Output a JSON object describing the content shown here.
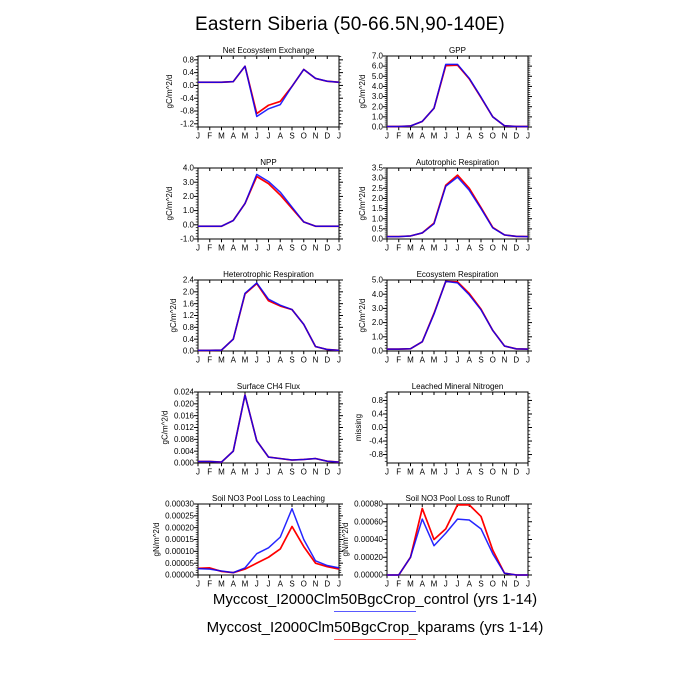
{
  "page_title": "Eastern Siberia (50-66.5N,90-140E)",
  "months": [
    "J",
    "F",
    "M",
    "A",
    "M",
    "J",
    "J",
    "A",
    "S",
    "O",
    "N",
    "D",
    "J"
  ],
  "colors": {
    "control": "#0000ff",
    "kparams": "#ff0000"
  },
  "legend": {
    "entries": [
      {
        "name": "control",
        "label": "Myccost_I2000Clm50BgcCrop_control (yrs 1-14)",
        "color": "#0000ff"
      },
      {
        "name": "kparams",
        "label": "Myccost_I2000Clm50BgcCrop_kparams (yrs 1-14)",
        "color": "#ff0000"
      }
    ]
  },
  "chart_data": [
    {
      "id": "net-ecosystem-exchange",
      "type": "line",
      "title": "Net Ecosystem Exchange",
      "ylabel": "gC/m^2/d",
      "ylim": [
        -1.3,
        0.92
      ],
      "yminor": 0.1,
      "ytick_vals": [
        -1.2,
        -0.8,
        -0.4,
        0.0,
        0.4,
        0.8
      ],
      "ytick_labels": [
        "-1.2",
        "-0.8",
        "-0.4",
        "0.0",
        "0.4",
        "0.8"
      ],
      "series": [
        {
          "name": "kparams",
          "color": "#ff0000",
          "values": [
            0.1,
            0.1,
            0.1,
            0.12,
            0.6,
            -0.88,
            -0.62,
            -0.5,
            -0.03,
            0.5,
            0.22,
            0.13,
            0.1
          ]
        },
        {
          "name": "control",
          "color": "#0000ff",
          "values": [
            0.1,
            0.1,
            0.1,
            0.12,
            0.6,
            -0.97,
            -0.73,
            -0.6,
            -0.03,
            0.5,
            0.22,
            0.13,
            0.1
          ]
        }
      ]
    },
    {
      "id": "gpp",
      "type": "line",
      "title": "GPP",
      "ylabel": "gC/m^2/d",
      "ylim": [
        0.0,
        7.0
      ],
      "yminor": 0.2,
      "ytick_vals": [
        0.0,
        1.0,
        2.0,
        3.0,
        4.0,
        5.0,
        6.0,
        7.0
      ],
      "ytick_labels": [
        "0.0",
        "1.0",
        "2.0",
        "3.0",
        "4.0",
        "5.0",
        "6.0",
        "7.0"
      ],
      "series": [
        {
          "name": "kparams",
          "color": "#ff0000",
          "values": [
            0.05,
            0.05,
            0.1,
            0.55,
            1.85,
            6.05,
            6.1,
            4.75,
            2.9,
            1.0,
            0.12,
            0.05,
            0.05
          ]
        },
        {
          "name": "control",
          "color": "#0000ff",
          "values": [
            0.05,
            0.05,
            0.1,
            0.55,
            1.85,
            6.18,
            6.18,
            4.8,
            2.95,
            1.0,
            0.12,
            0.05,
            0.05
          ]
        }
      ]
    },
    {
      "id": "npp",
      "type": "line",
      "title": "NPP",
      "ylabel": "gC/m^2/d",
      "ylim": [
        -1.0,
        4.0
      ],
      "yminor": 0.2,
      "ytick_vals": [
        -1.0,
        0.0,
        1.0,
        2.0,
        3.0,
        4.0
      ],
      "ytick_labels": [
        "-1.0",
        "0.0",
        "1.0",
        "2.0",
        "3.0",
        "4.0"
      ],
      "series": [
        {
          "name": "kparams",
          "color": "#ff0000",
          "values": [
            -0.1,
            -0.1,
            -0.1,
            0.3,
            1.5,
            3.4,
            2.9,
            2.1,
            1.15,
            0.2,
            -0.1,
            -0.1,
            -0.1
          ]
        },
        {
          "name": "control",
          "color": "#0000ff",
          "values": [
            -0.1,
            -0.1,
            -0.1,
            0.3,
            1.5,
            3.55,
            3.05,
            2.3,
            1.25,
            0.2,
            -0.1,
            -0.1,
            -0.1
          ]
        }
      ]
    },
    {
      "id": "autotrophic-respiration",
      "type": "line",
      "title": "Autotrophic Respiration",
      "ylabel": "gC/m^2/d",
      "ylim": [
        0.0,
        3.5
      ],
      "yminor": 0.1,
      "ytick_vals": [
        0.0,
        0.5,
        1.0,
        1.5,
        2.0,
        2.5,
        3.0,
        3.5
      ],
      "ytick_labels": [
        "0.0",
        "0.5",
        "1.0",
        "1.5",
        "2.0",
        "2.5",
        "3.0",
        "3.5"
      ],
      "series": [
        {
          "name": "kparams",
          "color": "#ff0000",
          "values": [
            0.12,
            0.12,
            0.15,
            0.3,
            0.78,
            2.65,
            3.15,
            2.5,
            1.55,
            0.57,
            0.2,
            0.13,
            0.12
          ]
        },
        {
          "name": "control",
          "color": "#0000ff",
          "values": [
            0.12,
            0.12,
            0.15,
            0.3,
            0.75,
            2.6,
            3.05,
            2.4,
            1.5,
            0.55,
            0.2,
            0.13,
            0.12
          ]
        }
      ]
    },
    {
      "id": "heterotrophic-respiration",
      "type": "line",
      "title": "Heterotrophic Respiration",
      "ylabel": "gC/m^2/d",
      "ylim": [
        0.0,
        2.4
      ],
      "yminor": 0.1,
      "ytick_vals": [
        0.0,
        0.4,
        0.8,
        1.2,
        1.6,
        2.0,
        2.4
      ],
      "ytick_labels": [
        "0.0",
        "0.4",
        "0.8",
        "1.2",
        "1.6",
        "2.0",
        "2.4"
      ],
      "series": [
        {
          "name": "kparams",
          "color": "#ff0000",
          "values": [
            0.02,
            0.02,
            0.03,
            0.4,
            1.93,
            2.28,
            1.7,
            1.52,
            1.4,
            0.9,
            0.15,
            0.05,
            0.02
          ]
        },
        {
          "name": "control",
          "color": "#0000ff",
          "values": [
            0.02,
            0.02,
            0.03,
            0.4,
            1.95,
            2.3,
            1.75,
            1.55,
            1.4,
            0.9,
            0.15,
            0.05,
            0.02
          ]
        }
      ]
    },
    {
      "id": "ecosystem-respiration",
      "type": "line",
      "title": "Ecosystem Respiration",
      "ylabel": "gC/m^2/d",
      "ylim": [
        0.0,
        5.0
      ],
      "yminor": 0.2,
      "ytick_vals": [
        0.0,
        1.0,
        2.0,
        3.0,
        4.0,
        5.0
      ],
      "ytick_labels": [
        "0.0",
        "1.0",
        "2.0",
        "3.0",
        "4.0",
        "5.0"
      ],
      "series": [
        {
          "name": "kparams",
          "color": "#ff0000",
          "values": [
            0.13,
            0.13,
            0.16,
            0.65,
            2.65,
            4.9,
            4.87,
            4.05,
            2.95,
            1.45,
            0.35,
            0.15,
            0.13
          ]
        },
        {
          "name": "control",
          "color": "#0000ff",
          "values": [
            0.13,
            0.13,
            0.16,
            0.65,
            2.6,
            4.9,
            4.8,
            3.95,
            2.9,
            1.45,
            0.35,
            0.15,
            0.13
          ]
        }
      ]
    },
    {
      "id": "surface-ch4-flux",
      "type": "line",
      "title": "Surface CH4 Flux",
      "ylabel": "gC/m^2/d",
      "ylim": [
        0.0,
        0.024
      ],
      "yminor": 0.001,
      "ytick_vals": [
        0.0,
        0.004,
        0.008,
        0.012,
        0.016,
        0.02,
        0.024
      ],
      "ytick_labels": [
        "0.000",
        "0.004",
        "0.008",
        "0.012",
        "0.016",
        "0.020",
        "0.024"
      ],
      "series": [
        {
          "name": "kparams",
          "color": "#ff0000",
          "values": [
            0.0005,
            0.0005,
            0.0003,
            0.004,
            0.023,
            0.0075,
            0.002,
            0.0015,
            0.001,
            0.0012,
            0.0015,
            0.0006,
            0.0003
          ]
        },
        {
          "name": "control",
          "color": "#0000ff",
          "values": [
            0.0005,
            0.0005,
            0.0003,
            0.004,
            0.023,
            0.0075,
            0.002,
            0.0015,
            0.001,
            0.0012,
            0.0015,
            0.0006,
            0.0003
          ]
        }
      ]
    },
    {
      "id": "leached-mineral-nitrogen",
      "type": "line",
      "title": "Leached Mineral Nitrogen",
      "ylabel": "missing",
      "ylim": [
        -1.05,
        1.05
      ],
      "yminor": 0.1,
      "ytick_vals": [
        -0.8,
        -0.4,
        0.0,
        0.4,
        0.8
      ],
      "ytick_labels": [
        "-0.8",
        "-0.4",
        "0.0",
        "0.4",
        "0.8"
      ],
      "series": []
    },
    {
      "id": "soil-no3-pool-loss-to-leaching",
      "type": "line",
      "title": "Soil NO3 Pool Loss to Leaching",
      "ylabel": "gN/m^2/d",
      "ylim": [
        0.0,
        0.0003
      ],
      "yminor": 1e-05,
      "ytick_vals": [
        0.0,
        5e-05,
        0.0001,
        0.00015,
        0.0002,
        0.00025,
        0.0003
      ],
      "ytick_labels": [
        "0.00000",
        "0.00005",
        "0.00010",
        "0.00015",
        "0.00020",
        "0.00025",
        "0.00030"
      ],
      "series": [
        {
          "name": "kparams",
          "color": "#ff0000",
          "values": [
            2.8e-05,
            3e-05,
            1.5e-05,
            1e-05,
            2.5e-05,
            5e-05,
            7.5e-05,
            0.00011,
            0.000205,
            0.00012,
            5e-05,
            3.5e-05,
            2.5e-05
          ]
        },
        {
          "name": "control",
          "color": "#0000ff",
          "values": [
            2.7e-05,
            2.5e-05,
            1.7e-05,
            1e-05,
            3e-05,
            9e-05,
            0.000115,
            0.00016,
            0.00028,
            0.00015,
            6e-05,
            4e-05,
            3e-05
          ]
        }
      ]
    },
    {
      "id": "soil-no3-pool-loss-to-runoff",
      "type": "line",
      "title": "Soil NO3 Pool Loss to Runoff",
      "ylabel": "gN/m^2/d",
      "ylim": [
        0.0,
        0.0008
      ],
      "yminor": 5e-05,
      "ytick_vals": [
        0.0,
        0.0002,
        0.0004,
        0.0006,
        0.0008
      ],
      "ytick_labels": [
        "0.00000",
        "0.00020",
        "0.00040",
        "0.00060",
        "0.00080"
      ],
      "series": [
        {
          "name": "kparams",
          "color": "#ff0000",
          "values": [
            0.0,
            0.0,
            0.0002,
            0.00075,
            0.0004,
            0.00052,
            0.00079,
            0.00079,
            0.00066,
            0.00028,
            2e-05,
            0.0,
            0.0
          ]
        },
        {
          "name": "control",
          "color": "#0000ff",
          "values": [
            0.0,
            0.0,
            0.0002,
            0.00063,
            0.00033,
            0.00047,
            0.00063,
            0.00062,
            0.00052,
            0.00024,
            2e-05,
            0.0,
            0.0
          ]
        }
      ]
    }
  ]
}
